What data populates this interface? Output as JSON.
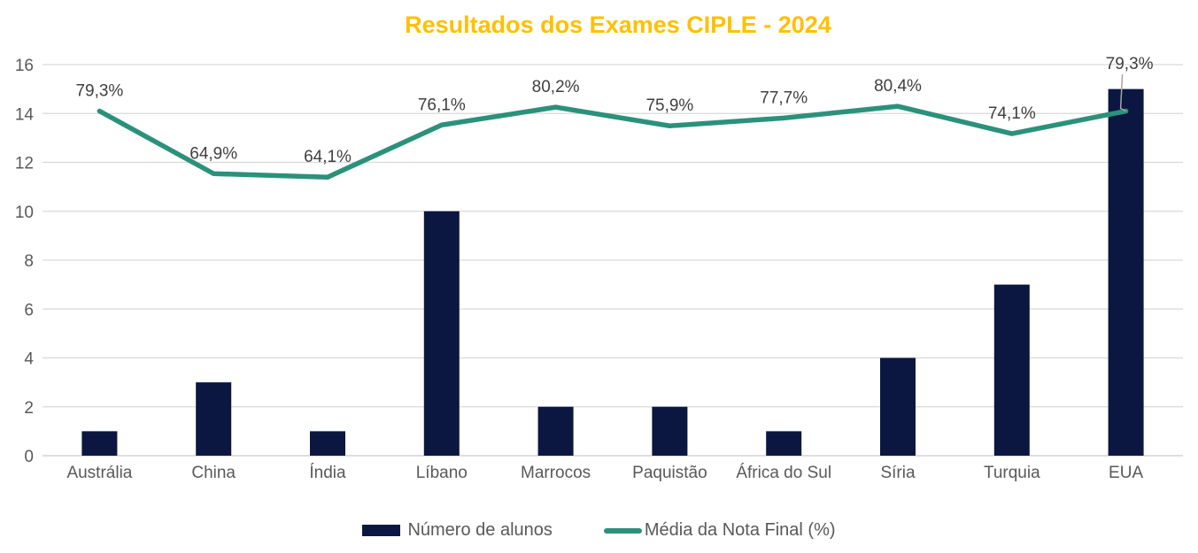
{
  "title": "Resultados dos Exames CIPLE - 2024",
  "colors": {
    "title": "#FFC000",
    "bar": "#0B1741",
    "line": "#2B917A",
    "axis_text": "#595959",
    "data_label": "#404040",
    "gridline": "#D9D9D9",
    "axis_line": "#C9C9C9",
    "leader_line": "#A6A6A6",
    "background": "#FFFFFF"
  },
  "chart_data": {
    "type": "combo-bar-line",
    "title": "Resultados dos Exames CIPLE - 2024",
    "categories": [
      "Austrália",
      "China",
      "Índia",
      "Líbano",
      "Marrocos",
      "Paquistão",
      "África do Sul",
      "Síria",
      "Turquia",
      "EUA"
    ],
    "series": [
      {
        "name": "Número de alunos",
        "type": "bar",
        "axis": "primary",
        "values": [
          1,
          3,
          1,
          10,
          2,
          2,
          1,
          4,
          7,
          15
        ]
      },
      {
        "name": "Média da Nota Final (%)",
        "type": "line",
        "axis": "secondary-hidden",
        "values": [
          79.3,
          64.9,
          64.1,
          76.1,
          80.2,
          75.9,
          77.7,
          80.4,
          74.1,
          79.3
        ],
        "labels": [
          "79,3%",
          "64,9%",
          "64,1%",
          "76,1%",
          "80,2%",
          "75,9%",
          "77,7%",
          "80,4%",
          "74,1%",
          "79,3%"
        ]
      }
    ],
    "y_axis": {
      "min": 0,
      "max": 16,
      "tick_step": 2,
      "ticks": [
        "0",
        "2",
        "4",
        "6",
        "8",
        "10",
        "12",
        "14",
        "16"
      ]
    },
    "y2_axis": {
      "visible": false,
      "min": 0,
      "max": 90
    },
    "grid": true,
    "legend_position": "bottom",
    "leader_line_category": "EUA"
  }
}
